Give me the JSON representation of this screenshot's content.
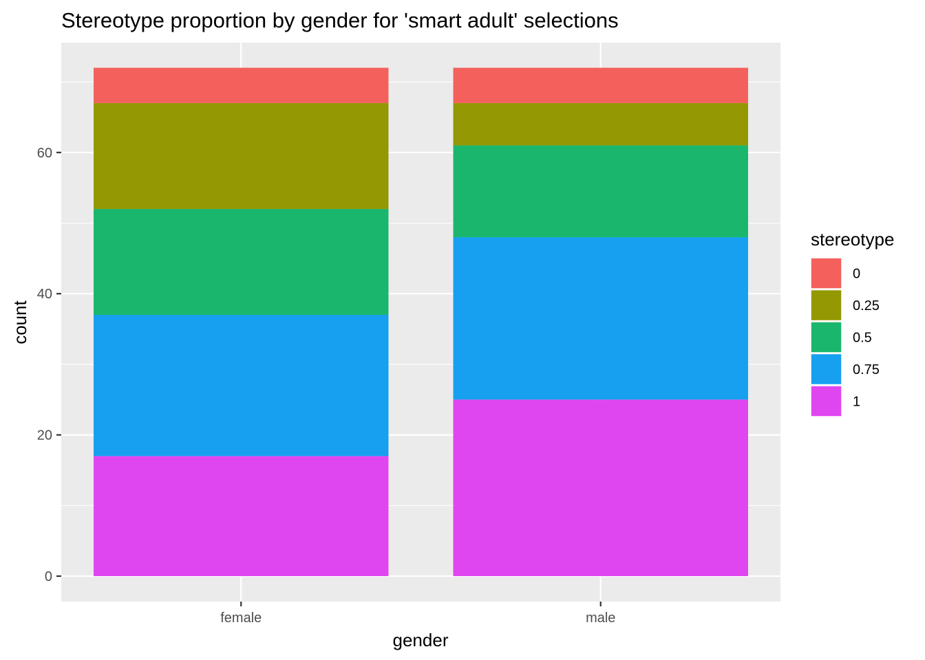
{
  "chart_data": {
    "type": "bar",
    "stacked": true,
    "title": "Stereotype proportion by gender for 'smart adult' selections",
    "xlabel": "gender",
    "ylabel": "count",
    "categories": [
      "female",
      "male"
    ],
    "ylim": [
      0,
      72
    ],
    "yticks": [
      0,
      20,
      40,
      60
    ],
    "grid": true,
    "legend": {
      "title": "stereotype",
      "position": "right"
    },
    "series": [
      {
        "name": "1",
        "color": "#E046F0",
        "values": [
          17,
          25
        ]
      },
      {
        "name": "0.75",
        "color": "#17A0F0",
        "values": [
          20,
          23
        ]
      },
      {
        "name": "0.5",
        "color": "#1BB66D",
        "values": [
          15,
          13
        ]
      },
      {
        "name": "0.25",
        "color": "#939803",
        "values": [
          15,
          6
        ]
      },
      {
        "name": "0",
        "color": "#F4605C",
        "values": [
          5,
          5
        ]
      }
    ],
    "legend_order": [
      "0",
      "0.25",
      "0.5",
      "0.75",
      "1"
    ]
  }
}
